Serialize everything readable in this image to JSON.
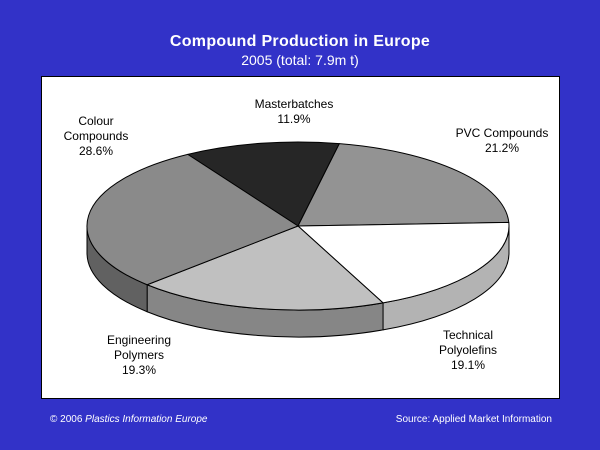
{
  "title": "Compound Production in Europe",
  "subtitle": "2005 (total: 7.9m t)",
  "footer": {
    "copyright_prefix": "© 2006 ",
    "copyright_publisher": "Plastics Information Europe",
    "source": "Source: Applied Market Information"
  },
  "chart_data": {
    "type": "pie",
    "title": "Compound Production in Europe",
    "subtitle": "2005 (total: 7.9m t)",
    "style": "3d-tilted",
    "slices": [
      {
        "label_lines": [
          "Masterbatches"
        ],
        "value": 11.9,
        "value_label": "11.9%",
        "color": "#262626"
      },
      {
        "label_lines": [
          "PVC Compounds"
        ],
        "value": 21.2,
        "value_label": "21.2%",
        "color": "#939393"
      },
      {
        "label_lines": [
          "Technical",
          "Polyolefins"
        ],
        "value": 19.1,
        "value_label": "19.1%",
        "color": "#ffffff"
      },
      {
        "label_lines": [
          "Engineering",
          "Polymers"
        ],
        "value": 19.3,
        "value_label": "19.3%",
        "color": "#c0c0c0"
      },
      {
        "label_lines": [
          "Colour",
          "Compounds"
        ],
        "value": 28.6,
        "value_label": "28.6%",
        "color": "#8a8a8a"
      }
    ]
  }
}
